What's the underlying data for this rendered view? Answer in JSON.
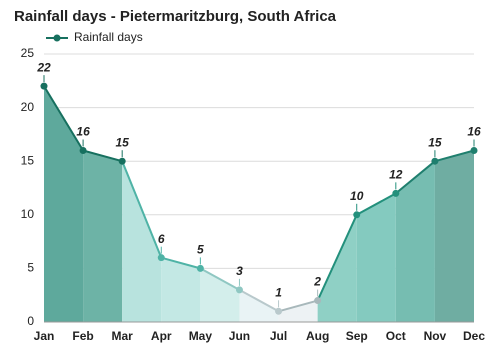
{
  "chart_data": {
    "type": "line",
    "title": "Rainfall days - Pietermaritzburg, South Africa",
    "categories": [
      "Jan",
      "Feb",
      "Mar",
      "Apr",
      "May",
      "Jun",
      "Jul",
      "Aug",
      "Sep",
      "Oct",
      "Nov",
      "Dec"
    ],
    "series": [
      {
        "name": "Rainfall days",
        "color": "#17705f",
        "values": [
          22,
          16,
          15,
          6,
          5,
          3,
          1,
          2,
          10,
          12,
          15,
          16
        ],
        "point_colors": [
          "#17705f",
          "#17705f",
          "#17705f",
          "#4fb3a6",
          "#4fb3a6",
          "#8fc7c2",
          "#b9c9cc",
          "#a8b8bb",
          "#23907c",
          "#23907c",
          "#1f7f6e",
          "#1f7f6e"
        ],
        "area_colors": [
          "#5ea99c",
          "#6db3a6",
          "#b8e3de",
          "#c3e8e4",
          "#d3eeeb",
          "#e9f3f5",
          "#edf2f4",
          "#8fd0c5",
          "#84cabf",
          "#76bdb1",
          "#6fada2"
        ]
      }
    ],
    "ylim": [
      0,
      25
    ],
    "yticks": [
      0,
      5,
      10,
      15,
      20,
      25
    ],
    "grid": true
  }
}
